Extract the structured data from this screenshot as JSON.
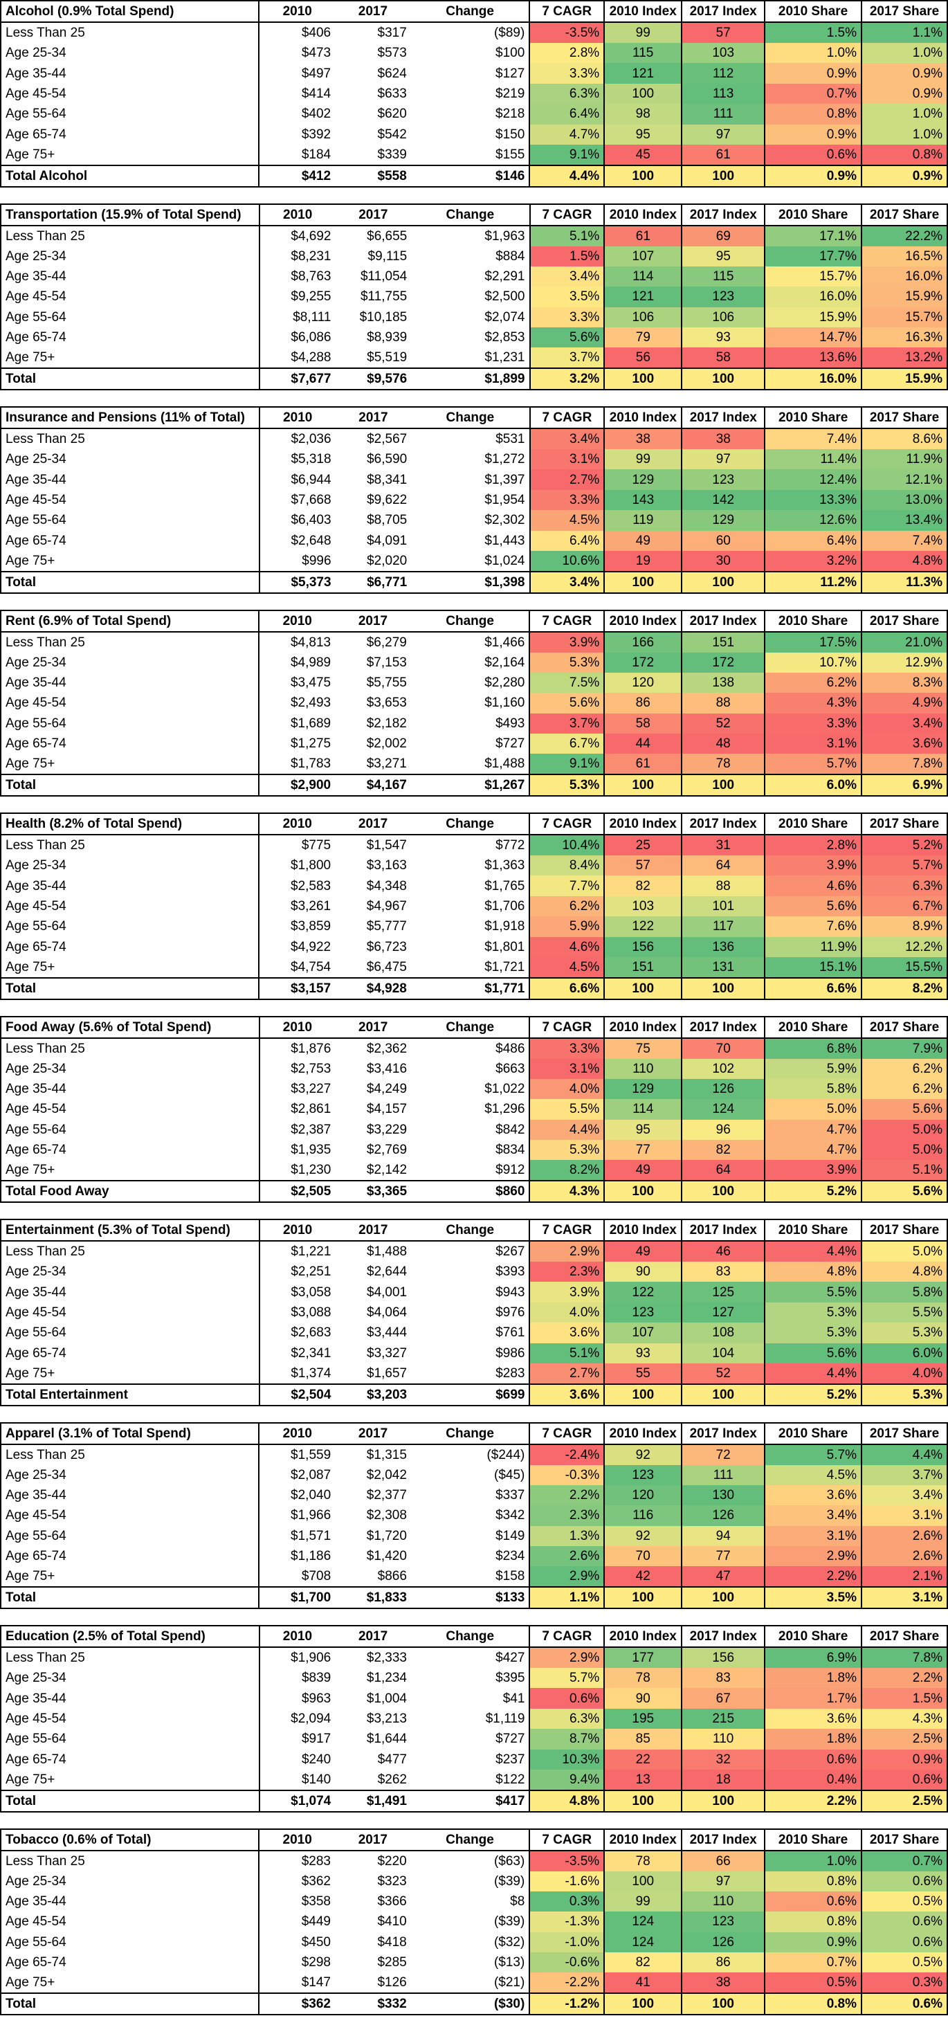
{
  "columns": [
    "2010",
    "2017",
    "Change",
    "7 CAGR",
    "2010 Index",
    "2017 Index",
    "2010 Share",
    "2017 Share"
  ],
  "sections": [
    {
      "title": "Alcohol (0.9% Total Spend)",
      "rows": [
        [
          "Less Than 25",
          "$406",
          "$317",
          "($89)",
          "-3.5%",
          "99",
          "57",
          "1.5%",
          "1.1%"
        ],
        [
          "Age 25-34",
          "$473",
          "$573",
          "$100",
          "2.8%",
          "115",
          "103",
          "1.0%",
          "1.0%"
        ],
        [
          "Age 35-44",
          "$497",
          "$624",
          "$127",
          "3.3%",
          "121",
          "112",
          "0.9%",
          "0.9%"
        ],
        [
          "Age 45-54",
          "$414",
          "$633",
          "$219",
          "6.3%",
          "100",
          "113",
          "0.7%",
          "0.9%"
        ],
        [
          "Age 55-64",
          "$402",
          "$620",
          "$218",
          "6.4%",
          "98",
          "111",
          "0.8%",
          "1.0%"
        ],
        [
          "Age 65-74",
          "$392",
          "$542",
          "$150",
          "4.7%",
          "95",
          "97",
          "0.9%",
          "1.0%"
        ],
        [
          "Age 75+",
          "$184",
          "$339",
          "$155",
          "9.1%",
          "45",
          "61",
          "0.6%",
          "0.8%"
        ]
      ],
      "total": [
        "Total Alcohol",
        "$412",
        "$558",
        "$146",
        "4.4%",
        "100",
        "100",
        "0.9%",
        "0.9%"
      ]
    },
    {
      "title": "Transportation (15.9% of Total Spend)",
      "rows": [
        [
          "Less Than 25",
          "$4,692",
          "$6,655",
          "$1,963",
          "5.1%",
          "61",
          "69",
          "17.1%",
          "22.2%"
        ],
        [
          "Age 25-34",
          "$8,231",
          "$9,115",
          "$884",
          "1.5%",
          "107",
          "95",
          "17.7%",
          "16.5%"
        ],
        [
          "Age 35-44",
          "$8,763",
          "$11,054",
          "$2,291",
          "3.4%",
          "114",
          "115",
          "15.7%",
          "16.0%"
        ],
        [
          "Age 45-54",
          "$9,255",
          "$11,755",
          "$2,500",
          "3.5%",
          "121",
          "123",
          "16.0%",
          "15.9%"
        ],
        [
          "Age 55-64",
          "$8,111",
          "$10,185",
          "$2,074",
          "3.3%",
          "106",
          "106",
          "15.9%",
          "15.7%"
        ],
        [
          "Age 65-74",
          "$6,086",
          "$8,939",
          "$2,853",
          "5.6%",
          "79",
          "93",
          "14.7%",
          "16.3%"
        ],
        [
          "Age 75+",
          "$4,288",
          "$5,519",
          "$1,231",
          "3.7%",
          "56",
          "58",
          "13.6%",
          "13.2%"
        ]
      ],
      "total": [
        "Total",
        "$7,677",
        "$9,576",
        "$1,899",
        "3.2%",
        "100",
        "100",
        "16.0%",
        "15.9%"
      ]
    },
    {
      "title": "Insurance and Pensions (11% of Total)",
      "rows": [
        [
          "Less Than 25",
          "$2,036",
          "$2,567",
          "$531",
          "3.4%",
          "38",
          "38",
          "7.4%",
          "8.6%"
        ],
        [
          "Age 25-34",
          "$5,318",
          "$6,590",
          "$1,272",
          "3.1%",
          "99",
          "97",
          "11.4%",
          "11.9%"
        ],
        [
          "Age 35-44",
          "$6,944",
          "$8,341",
          "$1,397",
          "2.7%",
          "129",
          "123",
          "12.4%",
          "12.1%"
        ],
        [
          "Age 45-54",
          "$7,668",
          "$9,622",
          "$1,954",
          "3.3%",
          "143",
          "142",
          "13.3%",
          "13.0%"
        ],
        [
          "Age 55-64",
          "$6,403",
          "$8,705",
          "$2,302",
          "4.5%",
          "119",
          "129",
          "12.6%",
          "13.4%"
        ],
        [
          "Age 65-74",
          "$2,648",
          "$4,091",
          "$1,443",
          "6.4%",
          "49",
          "60",
          "6.4%",
          "7.4%"
        ],
        [
          "Age 75+",
          "$996",
          "$2,020",
          "$1,024",
          "10.6%",
          "19",
          "30",
          "3.2%",
          "4.8%"
        ]
      ],
      "total": [
        "Total",
        "$5,373",
        "$6,771",
        "$1,398",
        "3.4%",
        "100",
        "100",
        "11.2%",
        "11.3%"
      ]
    },
    {
      "title": "Rent (6.9% of Total Spend)",
      "rows": [
        [
          "Less Than 25",
          "$4,813",
          "$6,279",
          "$1,466",
          "3.9%",
          "166",
          "151",
          "17.5%",
          "21.0%"
        ],
        [
          "Age 25-34",
          "$4,989",
          "$7,153",
          "$2,164",
          "5.3%",
          "172",
          "172",
          "10.7%",
          "12.9%"
        ],
        [
          "Age 35-44",
          "$3,475",
          "$5,755",
          "$2,280",
          "7.5%",
          "120",
          "138",
          "6.2%",
          "8.3%"
        ],
        [
          "Age 45-54",
          "$2,493",
          "$3,653",
          "$1,160",
          "5.6%",
          "86",
          "88",
          "4.3%",
          "4.9%"
        ],
        [
          "Age 55-64",
          "$1,689",
          "$2,182",
          "$493",
          "3.7%",
          "58",
          "52",
          "3.3%",
          "3.4%"
        ],
        [
          "Age 65-74",
          "$1,275",
          "$2,002",
          "$727",
          "6.7%",
          "44",
          "48",
          "3.1%",
          "3.6%"
        ],
        [
          "Age 75+",
          "$1,783",
          "$3,271",
          "$1,488",
          "9.1%",
          "61",
          "78",
          "5.7%",
          "7.8%"
        ]
      ],
      "total": [
        "Total",
        "$2,900",
        "$4,167",
        "$1,267",
        "5.3%",
        "100",
        "100",
        "6.0%",
        "6.9%"
      ]
    },
    {
      "title": "Health (8.2% of Total Spend)",
      "rows": [
        [
          "Less Than 25",
          "$775",
          "$1,547",
          "$772",
          "10.4%",
          "25",
          "31",
          "2.8%",
          "5.2%"
        ],
        [
          "Age 25-34",
          "$1,800",
          "$3,163",
          "$1,363",
          "8.4%",
          "57",
          "64",
          "3.9%",
          "5.7%"
        ],
        [
          "Age 35-44",
          "$2,583",
          "$4,348",
          "$1,765",
          "7.7%",
          "82",
          "88",
          "4.6%",
          "6.3%"
        ],
        [
          "Age 45-54",
          "$3,261",
          "$4,967",
          "$1,706",
          "6.2%",
          "103",
          "101",
          "5.6%",
          "6.7%"
        ],
        [
          "Age 55-64",
          "$3,859",
          "$5,777",
          "$1,918",
          "5.9%",
          "122",
          "117",
          "7.6%",
          "8.9%"
        ],
        [
          "Age 65-74",
          "$4,922",
          "$6,723",
          "$1,801",
          "4.6%",
          "156",
          "136",
          "11.9%",
          "12.2%"
        ],
        [
          "Age 75+",
          "$4,754",
          "$6,475",
          "$1,721",
          "4.5%",
          "151",
          "131",
          "15.1%",
          "15.5%"
        ]
      ],
      "total": [
        "Total",
        "$3,157",
        "$4,928",
        "$1,771",
        "6.6%",
        "100",
        "100",
        "6.6%",
        "8.2%"
      ]
    },
    {
      "title": "Food Away (5.6% of Total Spend)",
      "rows": [
        [
          "Less Than 25",
          "$1,876",
          "$2,362",
          "$486",
          "3.3%",
          "75",
          "70",
          "6.8%",
          "7.9%"
        ],
        [
          "Age 25-34",
          "$2,753",
          "$3,416",
          "$663",
          "3.1%",
          "110",
          "102",
          "5.9%",
          "6.2%"
        ],
        [
          "Age 35-44",
          "$3,227",
          "$4,249",
          "$1,022",
          "4.0%",
          "129",
          "126",
          "5.8%",
          "6.2%"
        ],
        [
          "Age 45-54",
          "$2,861",
          "$4,157",
          "$1,296",
          "5.5%",
          "114",
          "124",
          "5.0%",
          "5.6%"
        ],
        [
          "Age 55-64",
          "$2,387",
          "$3,229",
          "$842",
          "4.4%",
          "95",
          "96",
          "4.7%",
          "5.0%"
        ],
        [
          "Age 65-74",
          "$1,935",
          "$2,769",
          "$834",
          "5.3%",
          "77",
          "82",
          "4.7%",
          "5.0%"
        ],
        [
          "Age 75+",
          "$1,230",
          "$2,142",
          "$912",
          "8.2%",
          "49",
          "64",
          "3.9%",
          "5.1%"
        ]
      ],
      "total": [
        "Total Food Away",
        "$2,505",
        "$3,365",
        "$860",
        "4.3%",
        "100",
        "100",
        "5.2%",
        "5.6%"
      ]
    },
    {
      "title": "Entertainment (5.3% of Total Spend)",
      "rows": [
        [
          "Less Than 25",
          "$1,221",
          "$1,488",
          "$267",
          "2.9%",
          "49",
          "46",
          "4.4%",
          "5.0%"
        ],
        [
          "Age 25-34",
          "$2,251",
          "$2,644",
          "$393",
          "2.3%",
          "90",
          "83",
          "4.8%",
          "4.8%"
        ],
        [
          "Age 35-44",
          "$3,058",
          "$4,001",
          "$943",
          "3.9%",
          "122",
          "125",
          "5.5%",
          "5.8%"
        ],
        [
          "Age 45-54",
          "$3,088",
          "$4,064",
          "$976",
          "4.0%",
          "123",
          "127",
          "5.3%",
          "5.5%"
        ],
        [
          "Age 55-64",
          "$2,683",
          "$3,444",
          "$761",
          "3.6%",
          "107",
          "108",
          "5.3%",
          "5.3%"
        ],
        [
          "Age 65-74",
          "$2,341",
          "$3,327",
          "$986",
          "5.1%",
          "93",
          "104",
          "5.6%",
          "6.0%"
        ],
        [
          "Age 75+",
          "$1,374",
          "$1,657",
          "$283",
          "2.7%",
          "55",
          "52",
          "4.4%",
          "4.0%"
        ]
      ],
      "total": [
        "Total Entertainment",
        "$2,504",
        "$3,203",
        "$699",
        "3.6%",
        "100",
        "100",
        "5.2%",
        "5.3%"
      ]
    },
    {
      "title": "Apparel (3.1% of Total Spend)",
      "rows": [
        [
          "Less Than 25",
          "$1,559",
          "$1,315",
          "($244)",
          "-2.4%",
          "92",
          "72",
          "5.7%",
          "4.4%"
        ],
        [
          "Age 25-34",
          "$2,087",
          "$2,042",
          "($45)",
          "-0.3%",
          "123",
          "111",
          "4.5%",
          "3.7%"
        ],
        [
          "Age 35-44",
          "$2,040",
          "$2,377",
          "$337",
          "2.2%",
          "120",
          "130",
          "3.6%",
          "3.4%"
        ],
        [
          "Age 45-54",
          "$1,966",
          "$2,308",
          "$342",
          "2.3%",
          "116",
          "126",
          "3.4%",
          "3.1%"
        ],
        [
          "Age 55-64",
          "$1,571",
          "$1,720",
          "$149",
          "1.3%",
          "92",
          "94",
          "3.1%",
          "2.6%"
        ],
        [
          "Age 65-74",
          "$1,186",
          "$1,420",
          "$234",
          "2.6%",
          "70",
          "77",
          "2.9%",
          "2.6%"
        ],
        [
          "Age 75+",
          "$708",
          "$866",
          "$158",
          "2.9%",
          "42",
          "47",
          "2.2%",
          "2.1%"
        ]
      ],
      "total": [
        "Total",
        "$1,700",
        "$1,833",
        "$133",
        "1.1%",
        "100",
        "100",
        "3.5%",
        "3.1%"
      ]
    },
    {
      "title": "Education (2.5% of Total Spend)",
      "rows": [
        [
          "Less Than 25",
          "$1,906",
          "$2,333",
          "$427",
          "2.9%",
          "177",
          "156",
          "6.9%",
          "7.8%"
        ],
        [
          "Age 25-34",
          "$839",
          "$1,234",
          "$395",
          "5.7%",
          "78",
          "83",
          "1.8%",
          "2.2%"
        ],
        [
          "Age 35-44",
          "$963",
          "$1,004",
          "$41",
          "0.6%",
          "90",
          "67",
          "1.7%",
          "1.5%"
        ],
        [
          "Age 45-54",
          "$2,094",
          "$3,213",
          "$1,119",
          "6.3%",
          "195",
          "215",
          "3.6%",
          "4.3%"
        ],
        [
          "Age 55-64",
          "$917",
          "$1,644",
          "$727",
          "8.7%",
          "85",
          "110",
          "1.8%",
          "2.5%"
        ],
        [
          "Age 65-74",
          "$240",
          "$477",
          "$237",
          "10.3%",
          "22",
          "32",
          "0.6%",
          "0.9%"
        ],
        [
          "Age 75+",
          "$140",
          "$262",
          "$122",
          "9.4%",
          "13",
          "18",
          "0.4%",
          "0.6%"
        ]
      ],
      "total": [
        "Total",
        "$1,074",
        "$1,491",
        "$417",
        "4.8%",
        "100",
        "100",
        "2.2%",
        "2.5%"
      ]
    },
    {
      "title": "Tobacco (0.6% of Total)",
      "rows": [
        [
          "Less Than 25",
          "$283",
          "$220",
          "($63)",
          "-3.5%",
          "78",
          "66",
          "1.0%",
          "0.7%"
        ],
        [
          "Age 25-34",
          "$362",
          "$323",
          "($39)",
          "-1.6%",
          "100",
          "97",
          "0.8%",
          "0.6%"
        ],
        [
          "Age 35-44",
          "$358",
          "$366",
          "$8",
          "0.3%",
          "99",
          "110",
          "0.6%",
          "0.5%"
        ],
        [
          "Age 45-54",
          "$449",
          "$410",
          "($39)",
          "-1.3%",
          "124",
          "123",
          "0.8%",
          "0.6%"
        ],
        [
          "Age 55-64",
          "$450",
          "$418",
          "($32)",
          "-1.0%",
          "124",
          "126",
          "0.9%",
          "0.6%"
        ],
        [
          "Age 65-74",
          "$298",
          "$285",
          "($13)",
          "-0.6%",
          "82",
          "86",
          "0.7%",
          "0.5%"
        ],
        [
          "Age 75+",
          "$147",
          "$126",
          "($21)",
          "-2.2%",
          "41",
          "38",
          "0.5%",
          "0.3%"
        ]
      ],
      "total": [
        "Total",
        "$362",
        "$332",
        "($30)",
        "-1.2%",
        "100",
        "100",
        "0.8%",
        "0.6%"
      ]
    }
  ],
  "heat_colors": {
    "low": "#f8696b",
    "mid": "#ffeb84",
    "high": "#63be7b",
    "total": "#ffeb84"
  }
}
